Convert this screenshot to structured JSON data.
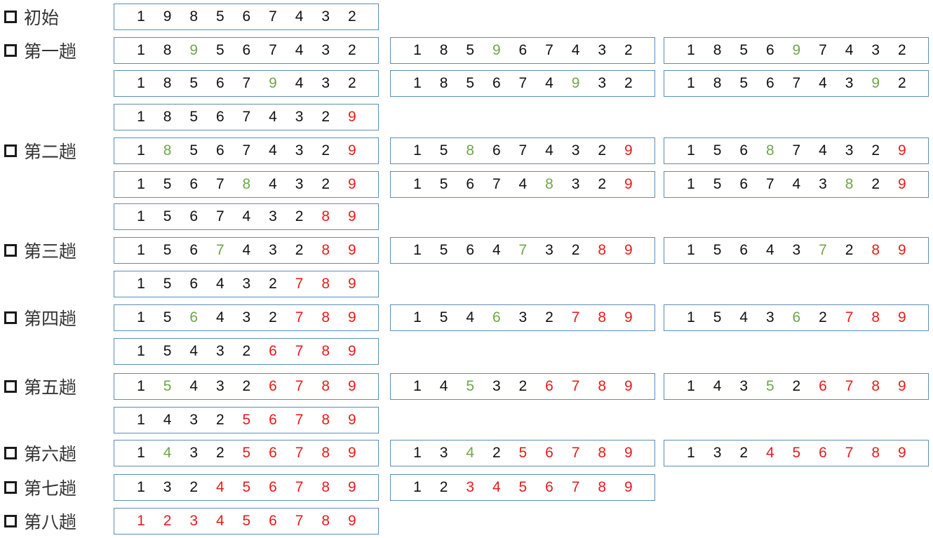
{
  "colors": {
    "normal": "#111111",
    "moving": "#6ea64a",
    "sorted": "#ea1a1a",
    "box_border": "#5b8db8",
    "label_text": "#333333"
  },
  "icon": "checkbox-icon",
  "passes": [
    {
      "label": "初始",
      "states": [
        {
          "digits": [
            "1",
            "9",
            "8",
            "5",
            "6",
            "7",
            "4",
            "3",
            "2"
          ],
          "moving": -1,
          "sorted_from": 9
        }
      ]
    },
    {
      "label": "第一趟",
      "states": [
        {
          "digits": [
            "1",
            "8",
            "9",
            "5",
            "6",
            "7",
            "4",
            "3",
            "2"
          ],
          "moving": 2,
          "sorted_from": 9
        },
        {
          "digits": [
            "1",
            "8",
            "5",
            "9",
            "6",
            "7",
            "4",
            "3",
            "2"
          ],
          "moving": 3,
          "sorted_from": 9
        },
        {
          "digits": [
            "1",
            "8",
            "5",
            "6",
            "9",
            "7",
            "4",
            "3",
            "2"
          ],
          "moving": 4,
          "sorted_from": 9
        },
        {
          "digits": [
            "1",
            "8",
            "5",
            "6",
            "7",
            "9",
            "4",
            "3",
            "2"
          ],
          "moving": 5,
          "sorted_from": 9
        },
        {
          "digits": [
            "1",
            "8",
            "5",
            "6",
            "7",
            "4",
            "9",
            "3",
            "2"
          ],
          "moving": 6,
          "sorted_from": 9
        },
        {
          "digits": [
            "1",
            "8",
            "5",
            "6",
            "7",
            "4",
            "3",
            "9",
            "2"
          ],
          "moving": 7,
          "sorted_from": 9
        },
        {
          "digits": [
            "1",
            "8",
            "5",
            "6",
            "7",
            "4",
            "3",
            "2",
            "9"
          ],
          "moving": -1,
          "sorted_from": 8
        }
      ]
    },
    {
      "label": "第二趟",
      "states": [
        {
          "digits": [
            "1",
            "8",
            "5",
            "6",
            "7",
            "4",
            "3",
            "2",
            "9"
          ],
          "moving": 1,
          "sorted_from": 8
        },
        {
          "digits": [
            "1",
            "5",
            "8",
            "6",
            "7",
            "4",
            "3",
            "2",
            "9"
          ],
          "moving": 2,
          "sorted_from": 8
        },
        {
          "digits": [
            "1",
            "5",
            "6",
            "8",
            "7",
            "4",
            "3",
            "2",
            "9"
          ],
          "moving": 3,
          "sorted_from": 8
        },
        {
          "digits": [
            "1",
            "5",
            "6",
            "7",
            "8",
            "4",
            "3",
            "2",
            "9"
          ],
          "moving": 4,
          "sorted_from": 8
        },
        {
          "digits": [
            "1",
            "5",
            "6",
            "7",
            "4",
            "8",
            "3",
            "2",
            "9"
          ],
          "moving": 5,
          "sorted_from": 8
        },
        {
          "digits": [
            "1",
            "5",
            "6",
            "7",
            "4",
            "3",
            "8",
            "2",
            "9"
          ],
          "moving": 6,
          "sorted_from": 8
        },
        {
          "digits": [
            "1",
            "5",
            "6",
            "7",
            "4",
            "3",
            "2",
            "8",
            "9"
          ],
          "moving": -1,
          "sorted_from": 7
        }
      ]
    },
    {
      "label": "第三趟",
      "states": [
        {
          "digits": [
            "1",
            "5",
            "6",
            "7",
            "4",
            "3",
            "2",
            "8",
            "9"
          ],
          "moving": 3,
          "sorted_from": 7
        },
        {
          "digits": [
            "1",
            "5",
            "6",
            "4",
            "7",
            "3",
            "2",
            "8",
            "9"
          ],
          "moving": 4,
          "sorted_from": 7
        },
        {
          "digits": [
            "1",
            "5",
            "6",
            "4",
            "3",
            "7",
            "2",
            "8",
            "9"
          ],
          "moving": 5,
          "sorted_from": 7
        },
        {
          "digits": [
            "1",
            "5",
            "6",
            "4",
            "3",
            "2",
            "7",
            "8",
            "9"
          ],
          "moving": -1,
          "sorted_from": 6
        }
      ]
    },
    {
      "label": "第四趟",
      "states": [
        {
          "digits": [
            "1",
            "5",
            "6",
            "4",
            "3",
            "2",
            "7",
            "8",
            "9"
          ],
          "moving": 2,
          "sorted_from": 6
        },
        {
          "digits": [
            "1",
            "5",
            "4",
            "6",
            "3",
            "2",
            "7",
            "8",
            "9"
          ],
          "moving": 3,
          "sorted_from": 6
        },
        {
          "digits": [
            "1",
            "5",
            "4",
            "3",
            "6",
            "2",
            "7",
            "8",
            "9"
          ],
          "moving": 4,
          "sorted_from": 6
        },
        {
          "digits": [
            "1",
            "5",
            "4",
            "3",
            "2",
            "6",
            "7",
            "8",
            "9"
          ],
          "moving": -1,
          "sorted_from": 5
        }
      ]
    },
    {
      "label": "第五趟",
      "states": [
        {
          "digits": [
            "1",
            "5",
            "4",
            "3",
            "2",
            "6",
            "7",
            "8",
            "9"
          ],
          "moving": 1,
          "sorted_from": 5
        },
        {
          "digits": [
            "1",
            "4",
            "5",
            "3",
            "2",
            "6",
            "7",
            "8",
            "9"
          ],
          "moving": 2,
          "sorted_from": 5
        },
        {
          "digits": [
            "1",
            "4",
            "3",
            "5",
            "2",
            "6",
            "7",
            "8",
            "9"
          ],
          "moving": 3,
          "sorted_from": 5
        },
        {
          "digits": [
            "1",
            "4",
            "3",
            "2",
            "5",
            "6",
            "7",
            "8",
            "9"
          ],
          "moving": -1,
          "sorted_from": 4
        }
      ]
    },
    {
      "label": "第六趟",
      "states": [
        {
          "digits": [
            "1",
            "4",
            "3",
            "2",
            "5",
            "6",
            "7",
            "8",
            "9"
          ],
          "moving": 1,
          "sorted_from": 4
        },
        {
          "digits": [
            "1",
            "3",
            "4",
            "2",
            "5",
            "6",
            "7",
            "8",
            "9"
          ],
          "moving": 2,
          "sorted_from": 4
        },
        {
          "digits": [
            "1",
            "3",
            "2",
            "4",
            "5",
            "6",
            "7",
            "8",
            "9"
          ],
          "moving": -1,
          "sorted_from": 3
        }
      ]
    },
    {
      "label": "第七趟",
      "states": [
        {
          "digits": [
            "1",
            "3",
            "2",
            "4",
            "5",
            "6",
            "7",
            "8",
            "9"
          ],
          "moving": -1,
          "sorted_from": 3
        },
        {
          "digits": [
            "1",
            "2",
            "3",
            "4",
            "5",
            "6",
            "7",
            "8",
            "9"
          ],
          "moving": -1,
          "sorted_from": 2
        }
      ]
    },
    {
      "label": "第八趟",
      "states": [
        {
          "digits": [
            "1",
            "2",
            "3",
            "4",
            "5",
            "6",
            "7",
            "8",
            "9"
          ],
          "moving": -1,
          "sorted_from": 0
        }
      ]
    }
  ]
}
